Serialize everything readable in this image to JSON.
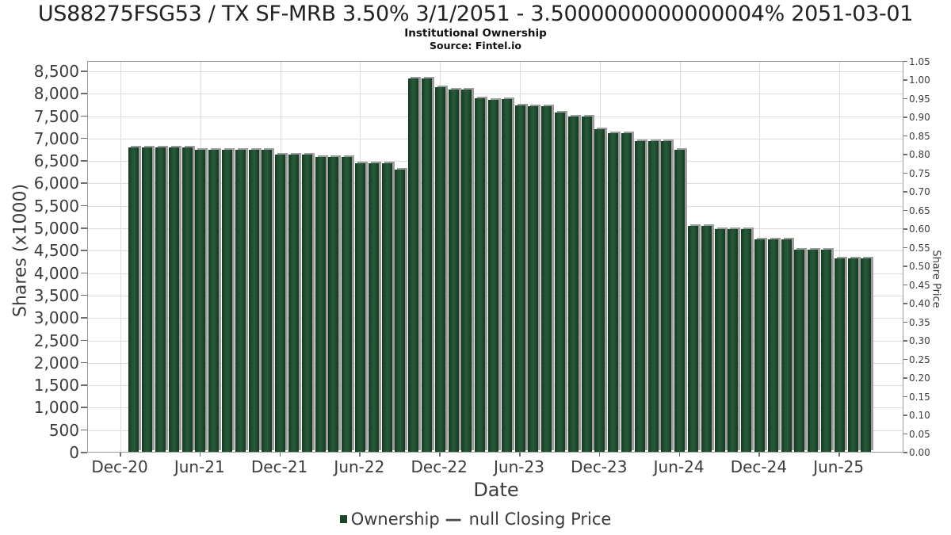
{
  "header": {
    "title": "US88275FSG53 / TX SF-MRB 3.50% 3/1/2051 - 3.5000000000000004% 2051-03-01",
    "subtitle": "Institutional Ownership",
    "source": "Source: Fintel.io"
  },
  "chart_data": {
    "type": "bar",
    "title": "Institutional Ownership",
    "xlabel": "Date",
    "ylabel_left": "Shares (x1000)",
    "ylabel_right": "Share Price",
    "grid": true,
    "legend_position": "bottom-center",
    "ylim_left": [
      0,
      8500
    ],
    "ylim_right": [
      0,
      1.05
    ],
    "bar_color": "#1d4930",
    "bar_shadow_color": "#9d9d9d",
    "gridline_color": "#dcdcdc",
    "x_tick_labels": [
      "Dec-20",
      "Jun-21",
      "Dec-21",
      "Jun-22",
      "Dec-22",
      "Jun-23",
      "Dec-23",
      "Jun-24",
      "Dec-24",
      "Jun-25"
    ],
    "y_left_ticks": [
      "0",
      "500",
      "1,000",
      "1,500",
      "2,000",
      "2,500",
      "3,000",
      "3,500",
      "4,000",
      "4,500",
      "5,000",
      "5,500",
      "6,000",
      "6,500",
      "7,000",
      "7,500",
      "8,000",
      "8,500"
    ],
    "y_right_ticks": [
      "0.00",
      "0.05",
      "0.10",
      "0.15",
      "0.20",
      "0.25",
      "0.30",
      "0.35",
      "0.40",
      "0.45",
      "0.50",
      "0.55",
      "0.60",
      "0.65",
      "0.70",
      "0.75",
      "0.80",
      "0.85",
      "0.90",
      "0.95",
      "1.00",
      "1.05"
    ],
    "legend": [
      {
        "label": "Ownership",
        "marker": "square",
        "color": "#1c4527"
      },
      {
        "label": "null Closing Price",
        "marker": "—"
      }
    ],
    "series": [
      {
        "name": "Ownership",
        "x": [
          "Jan-21",
          "Feb-21",
          "Mar-21",
          "Apr-21",
          "May-21",
          "Jun-21",
          "Jul-21",
          "Aug-21",
          "Sep-21",
          "Oct-21",
          "Nov-21",
          "Dec-21",
          "Jan-22",
          "Feb-22",
          "Mar-22",
          "Apr-22",
          "May-22",
          "Jun-22",
          "Jul-22",
          "Aug-22",
          "Sep-22",
          "Oct-22",
          "Nov-22",
          "Dec-22",
          "Jan-23",
          "Feb-23",
          "Mar-23",
          "Apr-23",
          "May-23",
          "Jun-23",
          "Jul-23",
          "Aug-23",
          "Sep-23",
          "Oct-23",
          "Nov-23",
          "Dec-23",
          "Jan-24",
          "Feb-24",
          "Mar-24",
          "Apr-24",
          "May-24",
          "Jun-24",
          "Jul-24",
          "Aug-24",
          "Sep-24",
          "Oct-24",
          "Nov-24",
          "Dec-24",
          "Jan-25",
          "Feb-25",
          "Mar-25",
          "Apr-25",
          "May-25",
          "Jun-25",
          "Jul-25",
          "Aug-25"
        ],
        "values": [
          6780,
          6780,
          6780,
          6780,
          6780,
          6740,
          6740,
          6740,
          6740,
          6740,
          6740,
          6620,
          6620,
          6620,
          6570,
          6570,
          6570,
          6430,
          6430,
          6430,
          6290,
          8320,
          8320,
          8130,
          8070,
          8070,
          7890,
          7850,
          7860,
          7720,
          7700,
          7700,
          7560,
          7480,
          7480,
          7200,
          7100,
          7100,
          6920,
          6920,
          6930,
          6740,
          5030,
          5040,
          4960,
          4960,
          4960,
          4730,
          4730,
          4740,
          4500,
          4500,
          4500,
          4320,
          4320,
          4320
        ]
      }
    ]
  }
}
